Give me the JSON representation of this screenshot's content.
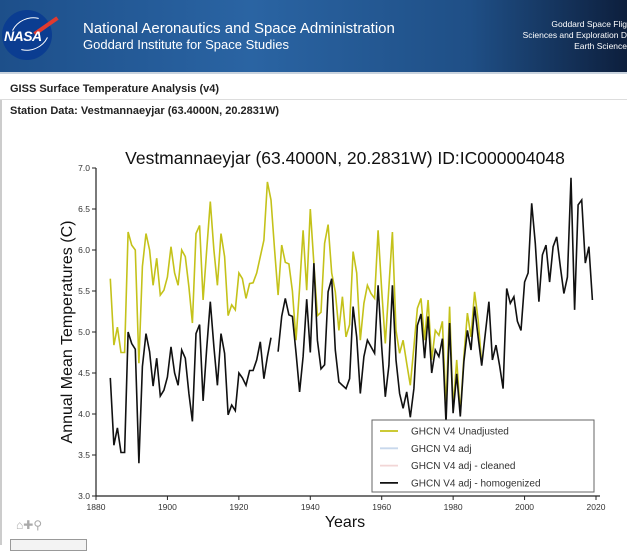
{
  "header": {
    "logo_text": "NASA",
    "title": "National Aeronautics and Space Administration",
    "subtitle": "Goddard Institute for Space Studies",
    "right_lines": [
      "Goddard Space Flig",
      "Sciences and Exploration D",
      "Earth Science"
    ]
  },
  "page": {
    "title": "GISS Surface Temperature Analysis (v4)",
    "station": "Station Data: Vestmannaeyjar (63.4000N, 20.2831W)"
  },
  "toolbar": {
    "icons": [
      "home-icon",
      "move-icon",
      "zoom-icon"
    ]
  },
  "chart_data": {
    "type": "line",
    "title": "Vestmannaeyjar (63.4000N, 20.2831W) ID:IC000004048",
    "xlabel": "Years",
    "ylabel": "Annual Mean Temperatures (C)",
    "xlim": [
      1880,
      2020
    ],
    "ylim": [
      3.0,
      7.0
    ],
    "xticks": [
      "1880",
      "1900",
      "1920",
      "1940",
      "1960",
      "1980",
      "2000",
      "2020"
    ],
    "yticks": [
      "3.0",
      "3.5",
      "4.0",
      "4.5",
      "5.0",
      "5.5",
      "6.0",
      "6.5",
      "7.0"
    ],
    "grid": false,
    "legend_position": "bottom-right",
    "x_first_year": 1884,
    "series": [
      {
        "name": "GHCN V4 Unadjusted",
        "color": "#c4c21a",
        "values": [
          5.65,
          4.84,
          5.06,
          4.75,
          4.75,
          6.22,
          6.06,
          6.0,
          4.62,
          5.8,
          6.2,
          6.0,
          5.57,
          5.9,
          5.45,
          5.51,
          5.67,
          6.04,
          5.72,
          5.57,
          6.0,
          5.92,
          5.55,
          5.11,
          6.2,
          6.3,
          5.39,
          6.0,
          6.59,
          6.0,
          5.57,
          6.2,
          5.92,
          5.2,
          5.33,
          5.27,
          5.72,
          5.65,
          5.41,
          5.59,
          5.6,
          5.72,
          5.92,
          6.12,
          6.83,
          6.61,
          6.0,
          5.45,
          6.06,
          5.85,
          5.83,
          5.5,
          4.9,
          5.54,
          6.24,
          5.51,
          6.5,
          5.83,
          5.2,
          5.24,
          6.08,
          6.31,
          5.72,
          5.49,
          5.02,
          5.43,
          4.94,
          5.09,
          5.98,
          5.72,
          4.9,
          5.35,
          5.57,
          5.47,
          5.41,
          6.24,
          5.51,
          4.86,
          5.55,
          6.22,
          5.02,
          4.74,
          4.9,
          4.62,
          4.35,
          4.82,
          5.29,
          5.41,
          4.9,
          5.39,
          4.66,
          5.02,
          4.96,
          5.13,
          4.07,
          5.31,
          4.07,
          4.66,
          4.01,
          4.7,
          5.23,
          4.94,
          5.49,
          5.15,
          4.62
        ]
      },
      {
        "name": "GHCN V4 adj",
        "color": "#c8d8ec",
        "values": []
      },
      {
        "name": "GHCN V4 adj - cleaned",
        "color": "#f2d6d6",
        "values": []
      },
      {
        "name": "GHCN V4 adj - homogenized",
        "color": "#111111",
        "values": [
          4.44,
          3.62,
          3.83,
          3.53,
          3.53,
          5.0,
          4.86,
          4.79,
          3.4,
          4.58,
          4.98,
          4.76,
          4.34,
          4.68,
          4.22,
          4.29,
          4.45,
          4.82,
          4.5,
          4.35,
          4.78,
          4.68,
          4.25,
          3.91,
          4.98,
          5.09,
          4.16,
          4.8,
          5.37,
          4.82,
          4.35,
          4.98,
          4.74,
          3.99,
          4.11,
          4.04,
          4.5,
          4.44,
          4.35,
          4.53,
          4.53,
          4.66,
          4.88,
          4.43,
          4.7,
          4.93,
          null,
          4.76,
          5.19,
          5.41,
          5.21,
          5.19,
          4.75,
          4.27,
          4.7,
          5.4,
          4.75,
          5.84,
          4.9,
          4.55,
          4.6,
          5.49,
          5.65,
          4.78,
          4.39,
          4.35,
          4.31,
          4.43,
          5.31,
          4.94,
          4.25,
          4.7,
          4.9,
          4.82,
          4.74,
          5.57,
          4.82,
          4.21,
          4.59,
          5.57,
          4.66,
          4.25,
          4.07,
          4.27,
          3.96,
          4.31,
          5.08,
          5.22,
          4.68,
          5.19,
          4.5,
          4.78,
          4.7,
          4.92,
          3.89,
          5.11,
          4.01,
          4.49,
          3.97,
          4.64,
          5.02,
          4.78,
          5.31,
          4.94,
          4.59,
          4.98,
          5.37,
          4.66,
          4.84,
          4.59,
          4.31,
          5.53,
          5.35,
          5.43,
          5.13,
          5.02,
          5.61,
          5.72,
          6.57,
          6.08,
          5.37,
          5.94,
          6.06,
          5.61,
          6.04,
          6.16,
          5.8,
          5.47,
          5.67,
          6.88,
          5.27,
          6.55,
          6.61,
          5.84,
          6.04,
          5.39
        ]
      }
    ]
  }
}
